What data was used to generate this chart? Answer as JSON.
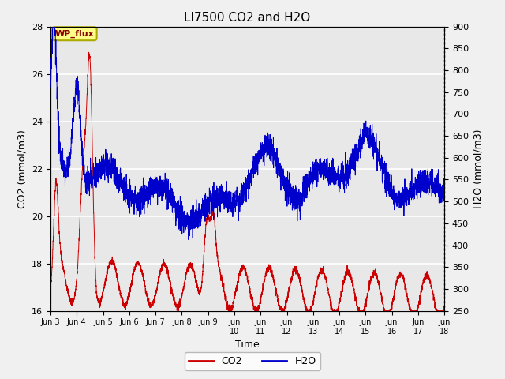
{
  "title": "LI7500 CO2 and H2O",
  "xlabel": "Time",
  "ylabel_left": "CO2 (mmol/m3)",
  "ylabel_right": "H2O (mmol/m3)",
  "xlim": [
    0,
    360
  ],
  "ylim_left": [
    16,
    28
  ],
  "ylim_right": [
    250,
    900
  ],
  "yticks_left": [
    16,
    18,
    20,
    22,
    24,
    26,
    28
  ],
  "yticks_right": [
    250,
    300,
    350,
    400,
    450,
    500,
    550,
    600,
    650,
    700,
    750,
    800,
    850,
    900
  ],
  "xtick_labels": [
    "Jun 3",
    "Jun 4",
    "Jun 5",
    "Jun 6",
    "Jun 7",
    "Jun 8",
    "Jun 9",
    "Jun\n10",
    "Jun\n11",
    "Jun\n12",
    "Jun\n13",
    "Jun\n14",
    "Jun\n15",
    "Jun\n16",
    "Jun\n17",
    "Jun\n18"
  ],
  "xtick_positions": [
    0,
    24,
    48,
    72,
    96,
    120,
    144,
    168,
    192,
    216,
    240,
    264,
    288,
    312,
    336,
    360
  ],
  "co2_color": "#cc0000",
  "h2o_color": "#0000cc",
  "fig_facecolor": "#f0f0f0",
  "plot_bg_color": "#e8e8e8",
  "annotation_text": "WP_flux",
  "grid_color": "#ffffff",
  "title_fontsize": 11,
  "axis_label_fontsize": 9,
  "tick_fontsize": 8
}
